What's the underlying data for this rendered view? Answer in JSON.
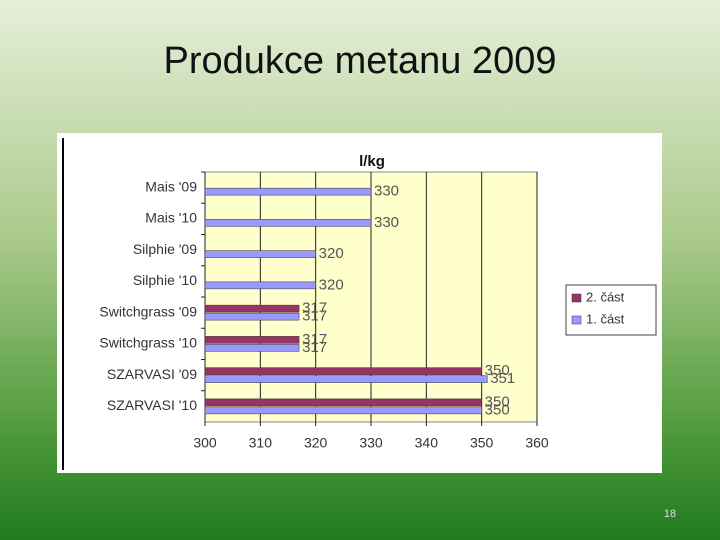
{
  "title": "Produkce metanu 2009",
  "page_number": "18",
  "chart_data": {
    "type": "hbar",
    "unit_label": "l/kg",
    "categories": [
      "Mais '09",
      "Mais '10",
      "Silphie '09",
      "Silphie '10",
      "Switchgrass '09",
      "Switchgrass '10",
      "SZARVASI '09",
      "SZARVASI '10"
    ],
    "series": [
      {
        "name": "2. část",
        "color": "#993366",
        "values": [
          null,
          null,
          null,
          null,
          317,
          317,
          350,
          350
        ]
      },
      {
        "name": "1. část",
        "color": "#9999ff",
        "values": [
          330,
          330,
          320,
          320,
          317,
          317,
          351,
          350
        ]
      }
    ],
    "xlim": [
      300,
      360
    ],
    "xticks": [
      300,
      310,
      320,
      330,
      340,
      350,
      360
    ],
    "grid": true,
    "legend": "right",
    "plot_background": "#ffffcc"
  }
}
